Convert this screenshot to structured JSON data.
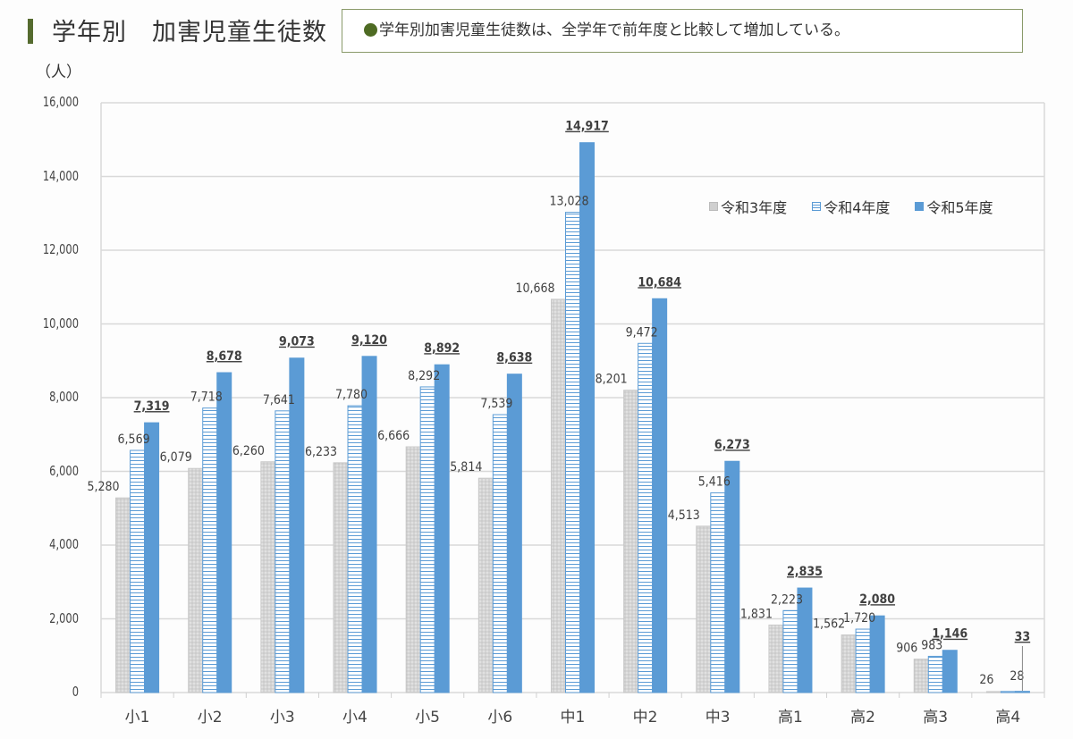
{
  "header": {
    "title": "学年別　加害児童生徒数",
    "summary": "学年別加害児童生徒数は、全学年で前年度と比較して増加している。",
    "accent_color": "#556b2f"
  },
  "chart_data": {
    "type": "bar",
    "title": "学年別　加害児童生徒数",
    "ylabel": "（人）",
    "xlabel": "",
    "ylim": [
      0,
      16000
    ],
    "yticks": [
      "0",
      "2,000",
      "4,000",
      "6,000",
      "8,000",
      "10,000",
      "12,000",
      "14,000",
      "16,000"
    ],
    "grid": true,
    "legend_position": "upper right",
    "categories": [
      "小1",
      "小2",
      "小3",
      "小4",
      "小5",
      "小6",
      "中1",
      "中2",
      "中3",
      "高1",
      "高2",
      "高3",
      "高4"
    ],
    "series": [
      {
        "name": "令和3年度",
        "color": "#cfcfcf",
        "pattern": "dotted",
        "values": [
          5280,
          6079,
          6260,
          6233,
          6666,
          5814,
          10668,
          8201,
          4513,
          1831,
          1562,
          906,
          26
        ],
        "labels": [
          "5,280",
          "6,079",
          "6,260",
          "6,233",
          "6,666",
          "5,814",
          "10,668",
          "8,201",
          "4,513",
          "1,831",
          "1,562",
          "906",
          "26"
        ]
      },
      {
        "name": "令和4年度",
        "color": "#5b9bd5",
        "pattern": "horizontal-stripes",
        "values": [
          6569,
          7718,
          7641,
          7780,
          8292,
          7539,
          13028,
          9472,
          5416,
          2223,
          1720,
          983,
          28
        ],
        "labels": [
          "6,569",
          "7,718",
          "7,641",
          "7,780",
          "8,292",
          "7,539",
          "13,028",
          "9,472",
          "5,416",
          "2,223",
          "1,720",
          "983",
          "28"
        ]
      },
      {
        "name": "令和5年度",
        "color": "#5b9bd5",
        "pattern": "solid",
        "values": [
          7319,
          8678,
          9073,
          9120,
          8892,
          8638,
          14917,
          10684,
          6273,
          2835,
          2080,
          1146,
          33
        ],
        "labels": [
          "7,319",
          "8,678",
          "9,073",
          "9,120",
          "8,892",
          "8,638",
          "14,917",
          "10,684",
          "6,273",
          "2,835",
          "2,080",
          "1,146",
          "33"
        ],
        "label_style": "bold-underlined"
      }
    ]
  }
}
